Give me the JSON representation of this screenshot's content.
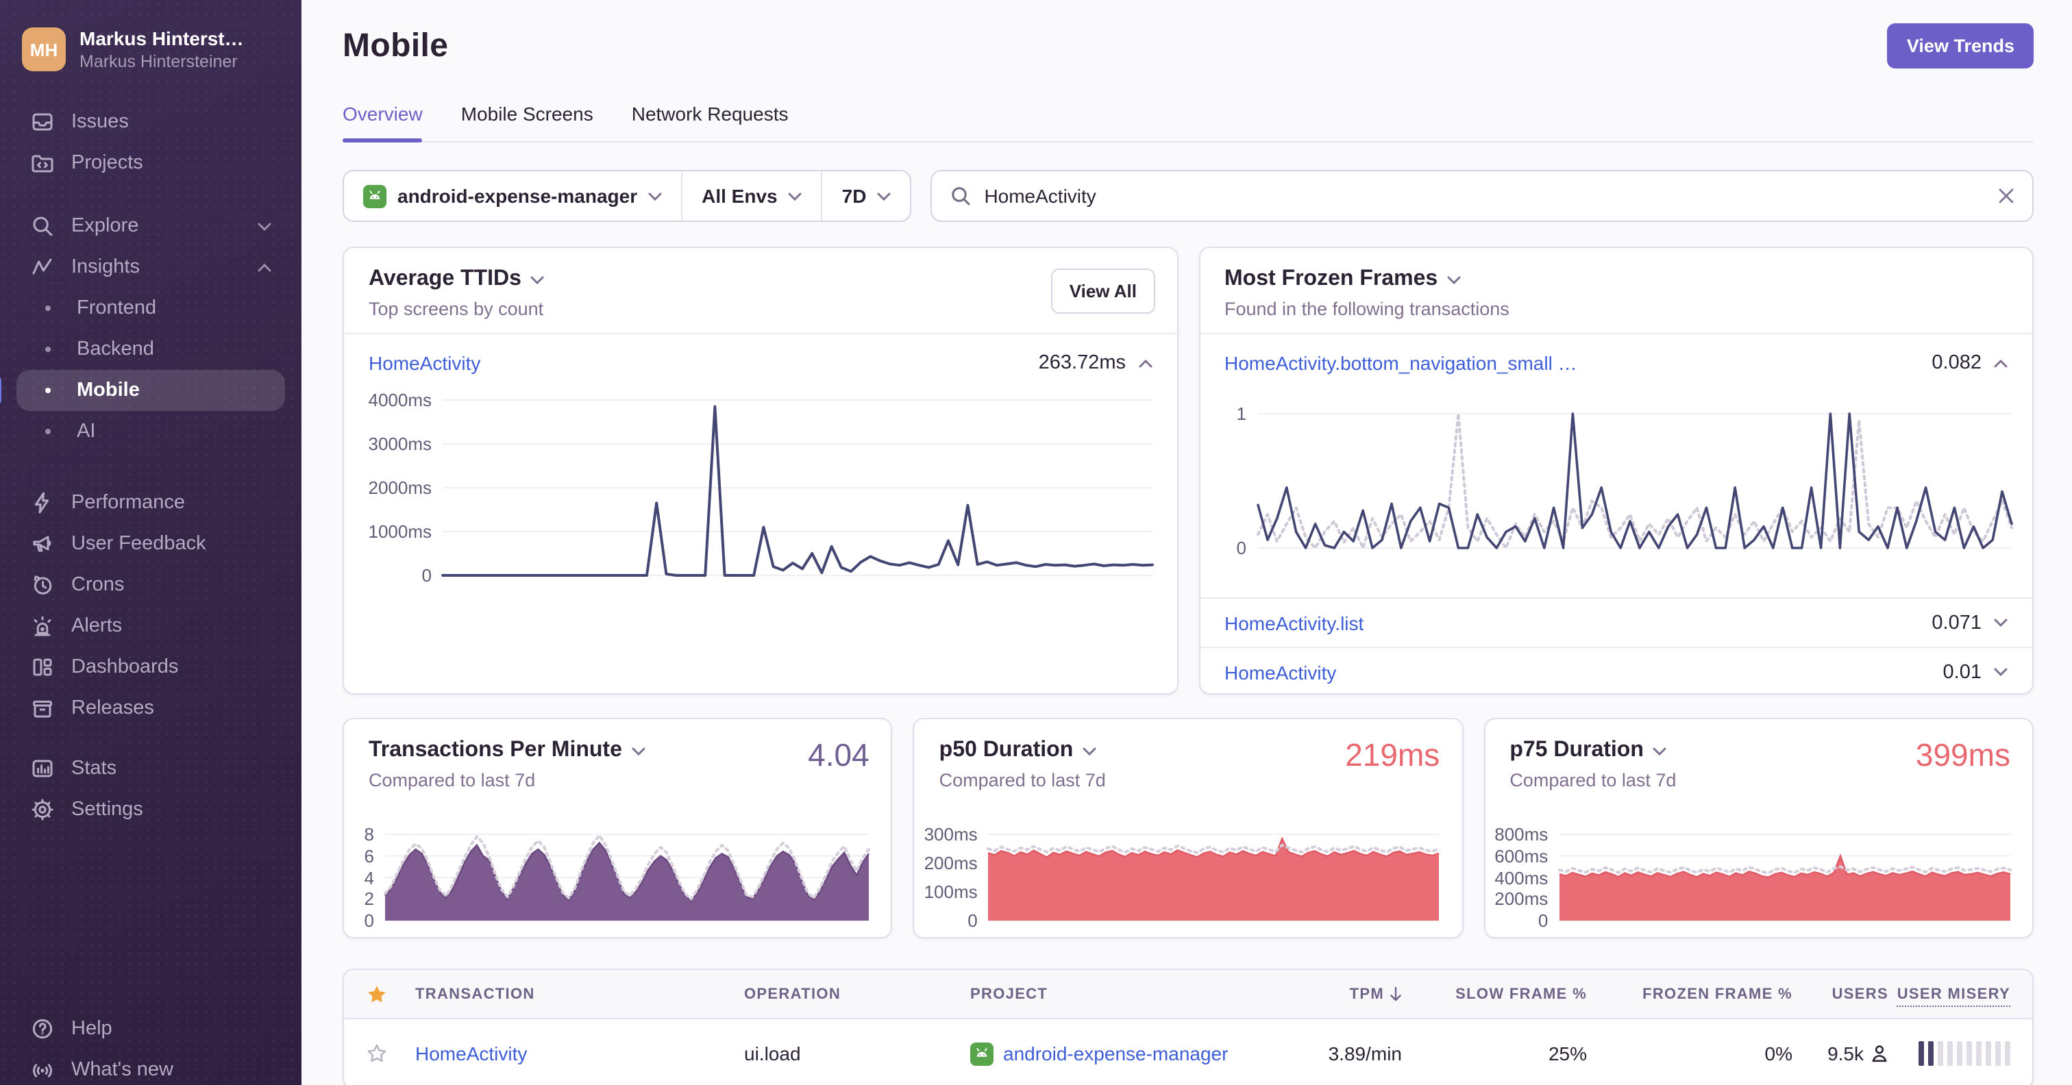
{
  "colors": {
    "accent": "#6C5FC7",
    "link": "#3E5ED7",
    "red": "#E9686F",
    "navy": "#444674",
    "purple_fill": "#7D5A90",
    "dotted_prev": "#D5CEDA",
    "android_green": "#57A44B",
    "star_gold": "#F0A43B",
    "sidebar_bg": "#352546",
    "indicator_blue": "#6D79E8"
  },
  "sidebar": {
    "user": {
      "initials": "MH",
      "name": "Markus Hinterst…",
      "org": "Markus Hintersteiner"
    },
    "primary": [
      {
        "label": "Issues"
      },
      {
        "label": "Projects"
      }
    ],
    "explore": {
      "label": "Explore"
    },
    "insights": {
      "label": "Insights"
    },
    "insights_children": [
      {
        "label": "Frontend"
      },
      {
        "label": "Backend"
      },
      {
        "label": "Mobile"
      },
      {
        "label": "AI"
      }
    ],
    "tools": [
      {
        "label": "Performance"
      },
      {
        "label": "User Feedback"
      },
      {
        "label": "Crons"
      },
      {
        "label": "Alerts"
      },
      {
        "label": "Dashboards"
      },
      {
        "label": "Releases"
      }
    ],
    "secondary": [
      {
        "label": "Stats"
      },
      {
        "label": "Settings"
      }
    ],
    "bottom": [
      {
        "label": "Help"
      },
      {
        "label": "What's new"
      }
    ]
  },
  "header": {
    "title": "Mobile",
    "view_trends": "View Trends",
    "tabs": [
      {
        "label": "Overview"
      },
      {
        "label": "Mobile Screens"
      },
      {
        "label": "Network Requests"
      }
    ]
  },
  "filters": {
    "project": "android-expense-manager",
    "env": "All Envs",
    "period": "7D",
    "search": "HomeActivity"
  },
  "cards": {
    "ttids": {
      "title": "Average TTIDs",
      "subtitle": "Top screens by count",
      "action": "View All",
      "rows": [
        {
          "label": "HomeActivity",
          "value": "263.72ms"
        }
      ]
    },
    "frozen": {
      "title": "Most Frozen Frames",
      "subtitle": "Found in the following transactions",
      "rows": [
        {
          "label": "HomeActivity.bottom_navigation_small …",
          "value": "0.082"
        },
        {
          "label": "HomeActivity.list",
          "value": "0.071"
        },
        {
          "label": "HomeActivity",
          "value": "0.01"
        }
      ]
    },
    "tpm": {
      "title": "Transactions Per Minute",
      "value": "4.04",
      "subtitle": "Compared to last 7d"
    },
    "p50": {
      "title": "p50 Duration",
      "value": "219ms",
      "subtitle": "Compared to last 7d"
    },
    "p75": {
      "title": "p75 Duration",
      "value": "399ms",
      "subtitle": "Compared to last 7d"
    }
  },
  "chart_data": {
    "ttids": {
      "type": "line",
      "title": "Average TTIDs — HomeActivity",
      "ylim": [
        0,
        4000
      ],
      "yticks": [
        "4000ms",
        "3000ms",
        "2000ms",
        "1000ms",
        "0"
      ],
      "series": [
        {
          "name": "current",
          "style": "line",
          "color": "#444674",
          "width": 2,
          "values": [
            0,
            0,
            0,
            0,
            0,
            0,
            0,
            0,
            0,
            0,
            0,
            0,
            0,
            0,
            0,
            0,
            0,
            0,
            0,
            0,
            0,
            0,
            1650,
            30,
            0,
            0,
            0,
            0,
            3850,
            0,
            0,
            0,
            0,
            1100,
            200,
            120,
            280,
            150,
            500,
            60,
            660,
            180,
            90,
            300,
            430,
            330,
            260,
            230,
            290,
            230,
            180,
            250,
            790,
            240,
            1600,
            250,
            310,
            230,
            260,
            290,
            230,
            200,
            250,
            230,
            240,
            210,
            230,
            260,
            220,
            240,
            230,
            250,
            230,
            240
          ]
        }
      ]
    },
    "frozen": {
      "type": "line",
      "title": "Most Frozen Frames — HomeActivity.bottom_navigation_small",
      "ylim": [
        0,
        1
      ],
      "yticks": [
        "1",
        "0"
      ],
      "series": [
        {
          "name": "previous",
          "style": "dotted",
          "color": "#CFC8D6",
          "width": 2,
          "values": [
            0.1,
            0.25,
            0.05,
            0.18,
            0.3,
            0.08,
            0,
            0.12,
            0.2,
            0.04,
            0.15,
            0,
            0.22,
            0.08,
            0.18,
            0.25,
            0.05,
            0.12,
            0.2,
            0.06,
            0.3,
            1.0,
            0.15,
            0.05,
            0.22,
            0.1,
            0,
            0.18,
            0.08,
            0.25,
            0.12,
            0.2,
            0.05,
            0.3,
            0.15,
            0.35,
            0.3,
            0.08,
            0.15,
            0.25,
            0.05,
            0.18,
            0.1,
            0.22,
            0.08,
            0.2,
            0.3,
            0.05,
            0.15,
            0.08,
            0.25,
            0.1,
            0.2,
            0.05,
            0.18,
            0.3,
            0.12,
            0.2,
            0.08,
            0.15,
            0.05,
            0.22,
            0.12,
            0.95,
            0.18,
            0.08,
            0.3,
            0.3,
            0.15,
            0.35,
            0.2,
            0.08,
            0.25,
            0.1,
            0.3,
            0.12,
            0.05,
            0.2,
            0.35,
            0.15
          ]
        },
        {
          "name": "current",
          "style": "line",
          "color": "#444674",
          "width": 1.8,
          "values": [
            0.32,
            0.06,
            0.22,
            0.45,
            0.12,
            0,
            0.18,
            0.02,
            0,
            0.12,
            0.05,
            0.28,
            0,
            0.06,
            0.33,
            0,
            0.2,
            0.3,
            0.05,
            0.33,
            0.3,
            0,
            0,
            0.25,
            0.08,
            0,
            0.12,
            0.16,
            0.05,
            0.22,
            0,
            0.3,
            0,
            1.0,
            0.15,
            0.25,
            0.45,
            0.12,
            0,
            0.2,
            0,
            0.12,
            0,
            0.16,
            0.25,
            0,
            0.1,
            0.3,
            0,
            0,
            0.45,
            0,
            0.06,
            0.16,
            0,
            0.3,
            0,
            0,
            0.45,
            0,
            1.0,
            0,
            1.0,
            0.12,
            0.06,
            0.16,
            0,
            0.3,
            0,
            0.2,
            0.45,
            0.12,
            0.06,
            0.3,
            0,
            0.16,
            0,
            0.06,
            0.42,
            0.18
          ]
        }
      ]
    },
    "tpm": {
      "type": "area",
      "title": "Transactions Per Minute",
      "ylim": [
        0,
        8
      ],
      "yticks": [
        "8",
        "6",
        "4",
        "2",
        "0"
      ],
      "series": [
        {
          "name": "current",
          "style": "area",
          "color": "#7D5A90",
          "line": "#6B4A80",
          "values": [
            2.3,
            3,
            4,
            5.2,
            6.1,
            6.6,
            6.2,
            5.1,
            3.8,
            2.6,
            2.1,
            2.9,
            4.1,
            5.4,
            6.4,
            7.0,
            6.0,
            5.6,
            4.2,
            2.7,
            2.0,
            3.1,
            4.2,
            5.3,
            6.2,
            6.6,
            6.1,
            5.0,
            3.7,
            2.4,
            1.9,
            2.8,
            4.3,
            5.6,
            6.6,
            7.2,
            6.5,
            5.2,
            3.9,
            2.5,
            2.1,
            2.7,
            3.6,
            4.7,
            5.5,
            6.0,
            5.6,
            4.6,
            3.4,
            2.3,
            1.8,
            2.6,
            3.7,
            4.9,
            5.8,
            6.2,
            5.9,
            4.8,
            3.5,
            2.2,
            2.0,
            2.9,
            3.9,
            5.1,
            6.0,
            6.4,
            6.1,
            5.3,
            3.8,
            2.4,
            1.9,
            2.7,
            3.8,
            5.0,
            5.7,
            6.3,
            5.1,
            4.2,
            5.4,
            6.2
          ]
        },
        {
          "name": "previous",
          "style": "dotted",
          "color": "#D5CEDA",
          "width": 2,
          "values": [
            2.5,
            3.2,
            4.4,
            5.6,
            6.6,
            7.1,
            6.7,
            5.5,
            4.0,
            2.8,
            2.3,
            3.3,
            4.6,
            5.9,
            7.0,
            7.8,
            7.2,
            5.9,
            4.3,
            2.9,
            2.2,
            3.2,
            4.5,
            5.8,
            6.8,
            7.4,
            6.8,
            5.4,
            3.9,
            2.6,
            2.1,
            3.0,
            4.6,
            6.0,
            7.2,
            7.9,
            7.0,
            5.6,
            4.1,
            2.7,
            2.3,
            3.0,
            4.0,
            5.2,
            6.2,
            6.8,
            6.3,
            5.0,
            3.6,
            2.5,
            2.0,
            2.9,
            4.1,
            5.4,
            6.4,
            7.0,
            6.5,
            5.2,
            3.8,
            2.4,
            2.2,
            3.1,
            4.3,
            5.6,
            6.6,
            7.2,
            6.7,
            5.5,
            4.0,
            2.6,
            2.1,
            3.0,
            4.2,
            5.5,
            6.3,
            6.9,
            5.6,
            4.6,
            5.8,
            6.6
          ]
        }
      ]
    },
    "p50": {
      "type": "area",
      "title": "p50 Duration",
      "ylim": [
        0,
        300
      ],
      "yticks": [
        "300ms",
        "200ms",
        "100ms",
        "0"
      ],
      "series": [
        {
          "name": "current",
          "style": "area",
          "color": "#EA6C75",
          "line": "#E05C68",
          "values": [
            235,
            228,
            242,
            236,
            225,
            238,
            230,
            244,
            232,
            220,
            236,
            229,
            241,
            233,
            226,
            239,
            231,
            224,
            237,
            243,
            230,
            222,
            235,
            228,
            240,
            232,
            226,
            238,
            231,
            245,
            236,
            228,
            221,
            234,
            240,
            229,
            223,
            237,
            230,
            242,
            233,
            226,
            239,
            232,
            225,
            285,
            238,
            230,
            223,
            236,
            242,
            231,
            224,
            238,
            229,
            235,
            243,
            232,
            226,
            239,
            230,
            223,
            236,
            241,
            229,
            233,
            238,
            230,
            226,
            234
          ]
        },
        {
          "name": "previous",
          "style": "dotted",
          "color": "#D5CEDA",
          "width": 2,
          "values": [
            250,
            243,
            256,
            248,
            241,
            253,
            246,
            258,
            247,
            238,
            252,
            244,
            257,
            249,
            240,
            254,
            247,
            239,
            251,
            259,
            246,
            237,
            250,
            243,
            255,
            248,
            240,
            253,
            246,
            260,
            251,
            242,
            236,
            249,
            256,
            244,
            238,
            252,
            245,
            257,
            248,
            241,
            254,
            247,
            239,
            263,
            253,
            245,
            238,
            251,
            257,
            246,
            239,
            253,
            244,
            250,
            258,
            247,
            241,
            254,
            245,
            238,
            251,
            256,
            244,
            248,
            253,
            245,
            241,
            249
          ]
        }
      ]
    },
    "p75": {
      "type": "area",
      "title": "p75 Duration",
      "ylim": [
        0,
        800
      ],
      "yticks": [
        "800ms",
        "600ms",
        "400ms",
        "200ms",
        "0"
      ],
      "series": [
        {
          "name": "current",
          "style": "area",
          "color": "#EA6C75",
          "line": "#E05C68",
          "values": [
            430,
            415,
            445,
            425,
            408,
            438,
            420,
            450,
            432,
            405,
            440,
            418,
            448,
            428,
            410,
            442,
            424,
            406,
            436,
            452,
            426,
            404,
            434,
            416,
            446,
            430,
            408,
            440,
            422,
            455,
            438,
            412,
            402,
            432,
            446,
            420,
            406,
            438,
            426,
            450,
            434,
            410,
            444,
            600,
            428,
            440,
            412,
            436,
            452,
            430,
            416,
            442,
            424,
            438,
            456,
            432,
            410,
            446,
            428,
            414,
            440,
            452,
            426,
            432,
            444,
            428,
            412,
            436,
            448,
            430
          ]
        },
        {
          "name": "previous",
          "style": "dotted",
          "color": "#D5CEDA",
          "width": 2,
          "values": [
            470,
            455,
            485,
            465,
            448,
            478,
            460,
            490,
            472,
            445,
            480,
            458,
            488,
            468,
            450,
            482,
            464,
            446,
            476,
            492,
            466,
            444,
            474,
            456,
            486,
            470,
            448,
            480,
            462,
            495,
            478,
            452,
            442,
            472,
            486,
            460,
            446,
            478,
            466,
            490,
            474,
            450,
            484,
            500,
            468,
            480,
            452,
            476,
            492,
            470,
            456,
            482,
            464,
            478,
            496,
            472,
            450,
            486,
            468,
            454,
            480,
            492,
            466,
            472,
            484,
            468,
            452,
            476,
            488,
            470
          ]
        }
      ]
    }
  },
  "table": {
    "columns": {
      "transaction": "TRANSACTION",
      "operation": "OPERATION",
      "project": "PROJECT",
      "tpm": "TPM",
      "slow": "SLOW FRAME %",
      "frozen": "FROZEN FRAME %",
      "users": "USERS",
      "misery": "USER MISERY"
    },
    "row": {
      "transaction": "HomeActivity",
      "operation": "ui.load",
      "project": "android-expense-manager",
      "tpm": "3.89/min",
      "slow": "25%",
      "frozen": "0%",
      "users": "9.5k",
      "misery": {
        "filled": 2,
        "total": 10
      }
    }
  }
}
